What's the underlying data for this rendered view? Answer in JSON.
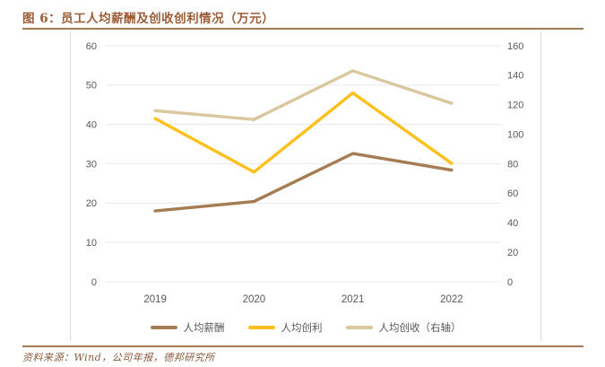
{
  "figure": {
    "title": "图 6：员工人均薪酬及创收创利情况（万元）",
    "source": "资料来源：Wind，公司年报，德邦研究所"
  },
  "colors": {
    "title_text": "#9b5c36",
    "rule_line": "#a57c52",
    "axis_text": "#595959",
    "gridline": "#e9e9e9",
    "source_text": "#8a5a3c"
  },
  "chart_data": {
    "type": "line",
    "title": "员工人均薪酬及创收创利情况（万元）",
    "categories": [
      "2019",
      "2020",
      "2021",
      "2022"
    ],
    "series": [
      {
        "name": "人均薪酬",
        "axis": "left",
        "color": "#a67c52",
        "values": [
          18.0,
          20.4,
          32.6,
          28.4
        ]
      },
      {
        "name": "人均创利",
        "axis": "left",
        "color": "#ffc01e",
        "values": [
          41.5,
          27.9,
          48.0,
          30.1
        ]
      },
      {
        "name": "人均创收（右轴）",
        "axis": "right",
        "color": "#d9c89e",
        "values": [
          116,
          110,
          143,
          121
        ]
      }
    ],
    "left_axis": {
      "min": 0,
      "max": 60,
      "step": 10,
      "ticks": [
        0,
        10,
        20,
        30,
        40,
        50,
        60
      ]
    },
    "right_axis": {
      "min": 0,
      "max": 160,
      "step": 20,
      "ticks": [
        0,
        20,
        40,
        60,
        80,
        100,
        120,
        140,
        160
      ]
    },
    "grid": true,
    "legend_position": "bottom"
  }
}
